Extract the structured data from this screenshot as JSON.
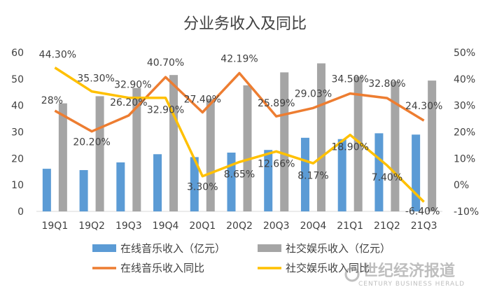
{
  "chart_data": {
    "type": "bar",
    "title": "分业务收入及同比",
    "categories": [
      "19Q1",
      "19Q2",
      "19Q3",
      "19Q4",
      "20Q1",
      "20Q2",
      "20Q3",
      "20Q4",
      "21Q1",
      "21Q2",
      "21Q3"
    ],
    "ylim": [
      0,
      60
    ],
    "y2lim": [
      -0.1,
      0.5
    ],
    "y_ticks": [
      "0",
      "10",
      "20",
      "30",
      "40",
      "50",
      "60"
    ],
    "y2_ticks": [
      "-10%",
      "0%",
      "10%",
      "20%",
      "30%",
      "40%",
      "50%"
    ],
    "series": [
      {
        "name": "在线音乐收入（亿元）",
        "kind": "bar",
        "axis": "left",
        "color": "#5B9BD5",
        "values": [
          16.1,
          15.6,
          18.5,
          21.6,
          20.5,
          22.2,
          23.2,
          27.8,
          27.3,
          29.5,
          29.0
        ]
      },
      {
        "name": "社交娱乐收入（亿元）",
        "kind": "bar",
        "axis": "left",
        "color": "#A5A5A5",
        "values": [
          40.8,
          43.5,
          46.6,
          51.5,
          42.5,
          47.6,
          52.5,
          55.9,
          50.9,
          49.1,
          49.4
        ]
      },
      {
        "name": "在线音乐收入同比",
        "kind": "line",
        "axis": "right",
        "color": "#ED7D31",
        "values": [
          0.28,
          0.202,
          0.262,
          0.407,
          0.274,
          0.4219,
          0.2589,
          0.2903,
          0.345,
          0.328,
          0.243
        ],
        "labels": [
          "28%",
          "20.20%",
          "26.20%",
          "40.70%",
          "27.40%",
          "42.19%",
          "25.89%",
          "29.03%",
          "34.50%",
          "32.80%",
          "24.30%"
        ]
      },
      {
        "name": "社交娱乐收入同比",
        "kind": "line",
        "axis": "right",
        "color": "#FFC000",
        "values": [
          0.443,
          0.353,
          0.329,
          0.329,
          0.033,
          0.0865,
          0.1266,
          0.0817,
          0.189,
          0.074,
          -0.064
        ],
        "labels": [
          "44.30%",
          "35.30%",
          "32.90%",
          "32.90%",
          "3.30%",
          "8.65%",
          "12.66%",
          "8.17%",
          "18.90%",
          "7.40%",
          "-6.40%"
        ]
      }
    ],
    "legend_position": "bottom",
    "grid": false
  },
  "watermark": {
    "cn": "世纪经济报道",
    "en": "CENTURY BUSINESS HERALD"
  }
}
